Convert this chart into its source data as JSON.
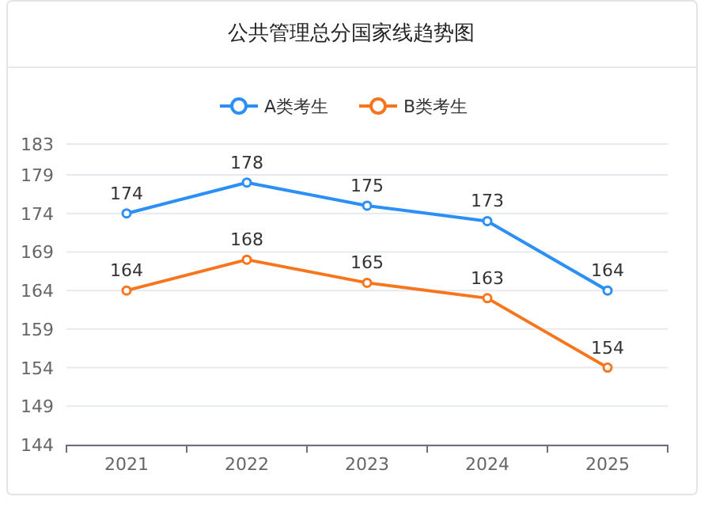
{
  "chart_data": {
    "type": "line",
    "title": "公共管理总分国家线趋势图",
    "categories": [
      "2021",
      "2022",
      "2023",
      "2024",
      "2025"
    ],
    "series": [
      {
        "name": "A类考生",
        "color": "#2b8ff6",
        "values": [
          174,
          178,
          175,
          173,
          164
        ]
      },
      {
        "name": "B类考生",
        "color": "#f7761d",
        "values": [
          164,
          168,
          165,
          163,
          154
        ]
      }
    ],
    "ylim": [
      144,
      183
    ],
    "yticks": [
      144,
      149,
      154,
      159,
      164,
      169,
      174,
      179,
      183
    ],
    "grid": "y",
    "legend": "top",
    "marker": "circle",
    "line_style": "solid",
    "data_labels": true
  }
}
